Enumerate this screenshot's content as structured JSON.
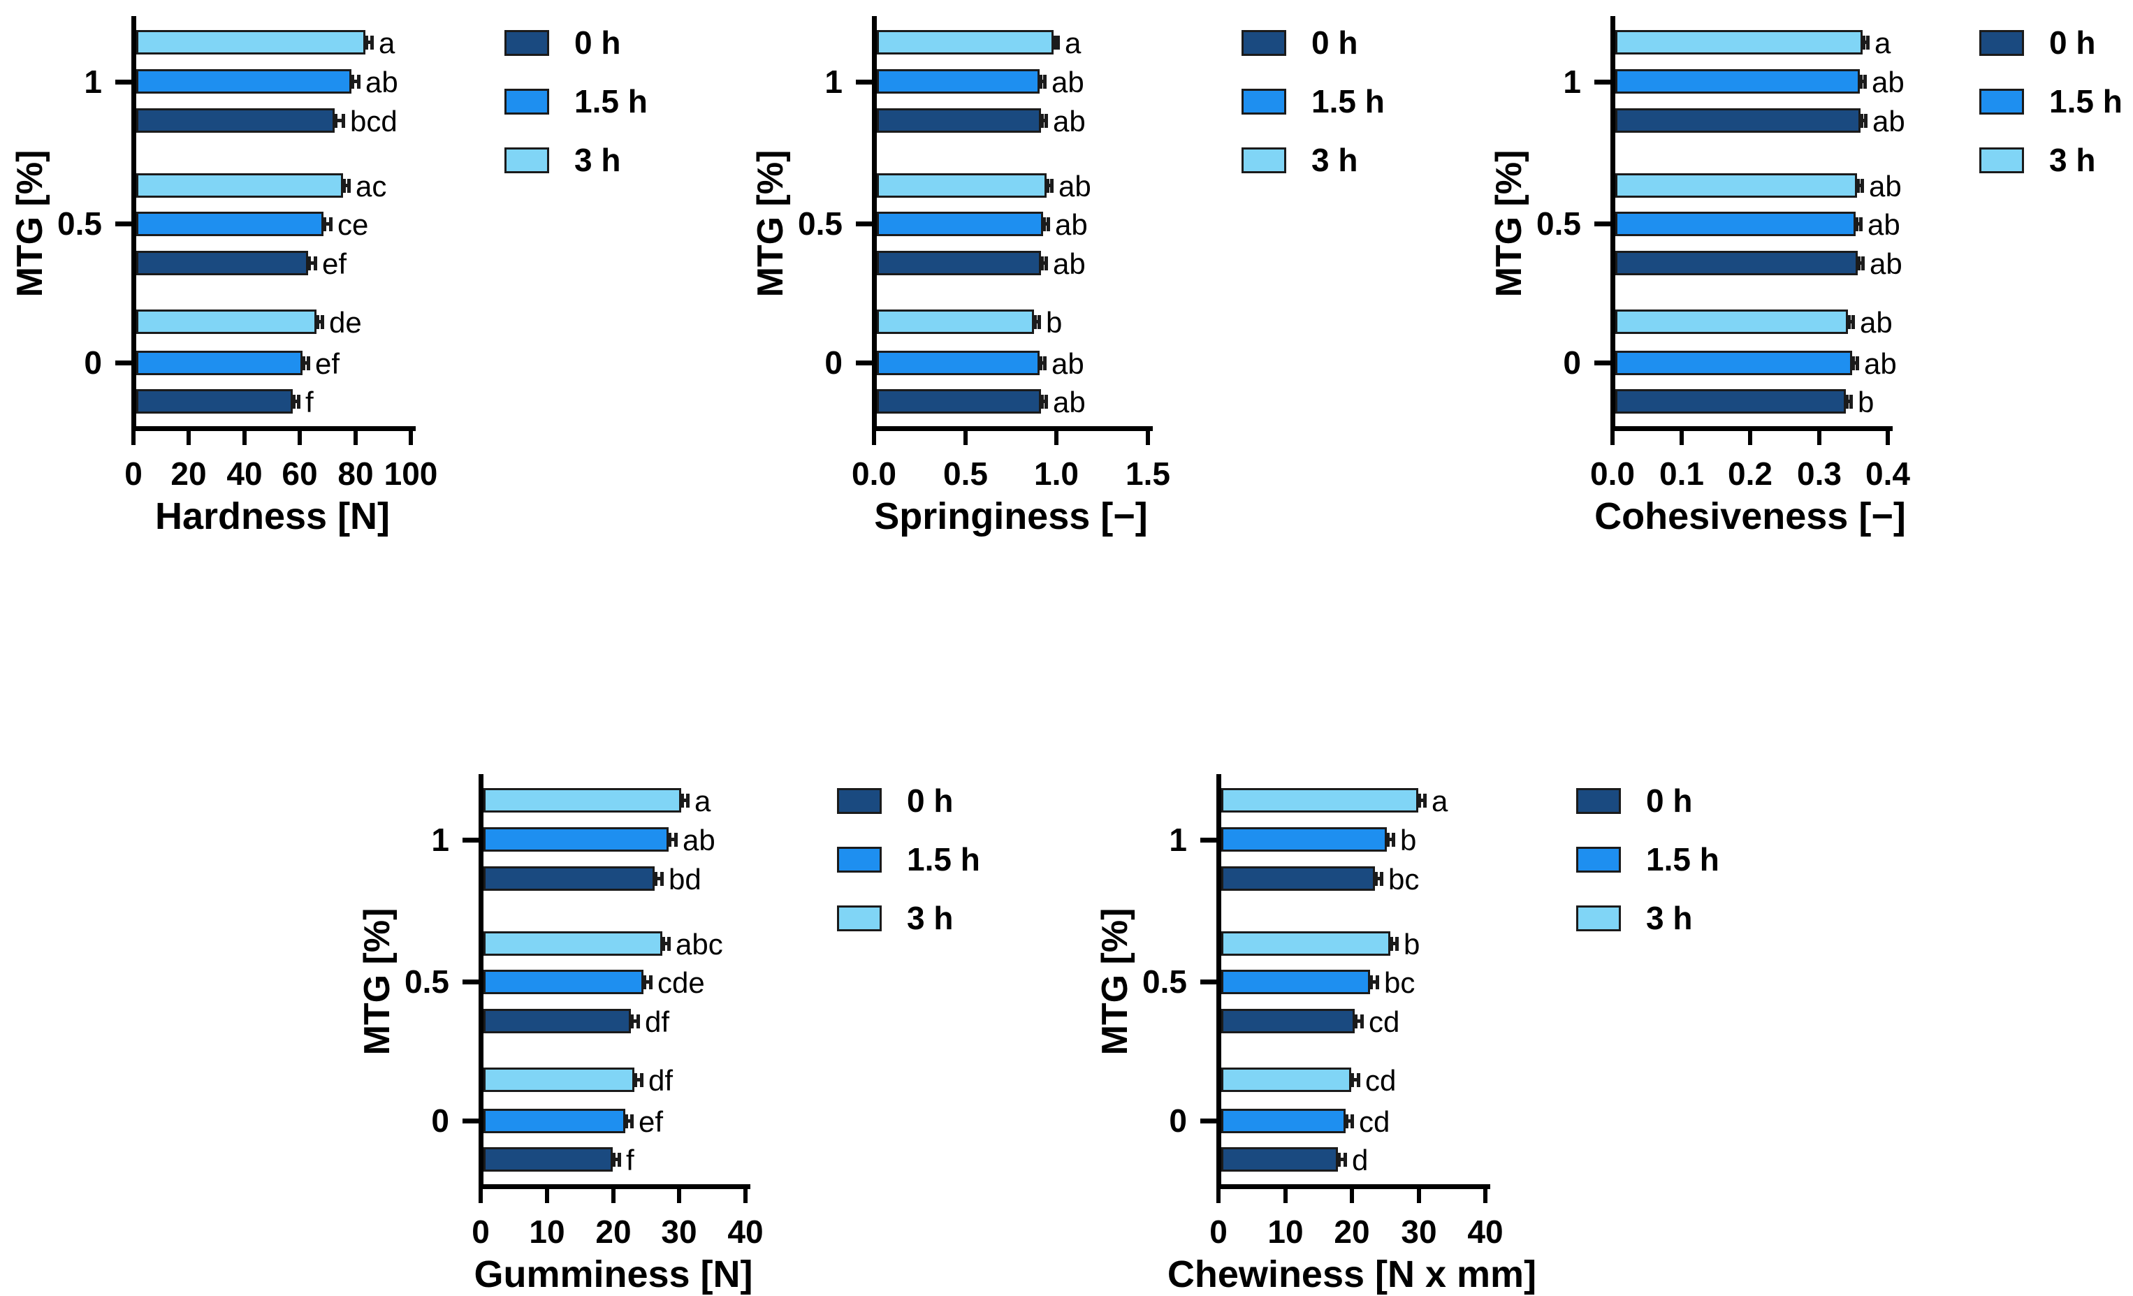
{
  "figure": {
    "background": "#FFFFFF",
    "y_axis_label": "MTG [%]",
    "y_categories": [
      "1",
      "0.5",
      "0"
    ],
    "legend_labels": [
      "0 h",
      "1.5 h",
      "3 h"
    ],
    "colors": {
      "series_0h": "#1A4A80",
      "series_1_5h": "#1E8FF0",
      "series_3h": "#80D5F6",
      "outline": "#1B1B1B",
      "axis": "#000000"
    }
  },
  "chart_data": [
    {
      "type": "bar",
      "orientation": "horizontal",
      "xlabel": "Hardness [N]",
      "ylabel": "MTG [%]",
      "xlim": [
        0,
        100
      ],
      "xtick_labels": [
        "0",
        "20",
        "40",
        "60",
        "80",
        "100"
      ],
      "categories": [
        "1",
        "0.5",
        "0"
      ],
      "legend_labels": [
        "0 h",
        "1.5 h",
        "3 h"
      ],
      "grid": false,
      "legend_position": "right",
      "series": [
        {
          "name": "0 h",
          "color": "#1A4A80",
          "values": [
            71.5,
            62.0,
            56.5
          ],
          "errors": [
            2.5,
            2.0,
            1.5
          ],
          "sig_letters": [
            "bcd",
            "ef",
            "f"
          ]
        },
        {
          "name": "1.5 h",
          "color": "#1E8FF0",
          "values": [
            77.5,
            67.5,
            60.0
          ],
          "errors": [
            2.0,
            2.0,
            1.5
          ],
          "sig_letters": [
            "ab",
            "ce",
            "ef"
          ]
        },
        {
          "name": "3 h",
          "color": "#80D5F6",
          "values": [
            82.5,
            74.5,
            65.0
          ],
          "errors": [
            2.0,
            1.5,
            1.5
          ],
          "sig_letters": [
            "a",
            "ac",
            "de"
          ]
        }
      ]
    },
    {
      "type": "bar",
      "orientation": "horizontal",
      "xlabel": "Springiness [−]",
      "ylabel": "MTG [%]",
      "xlim": [
        0,
        1.5
      ],
      "xtick_labels": [
        "0.0",
        "0.5",
        "1.0",
        "1.5"
      ],
      "categories": [
        "1",
        "0.5",
        "0"
      ],
      "legend_labels": [
        "0 h",
        "1.5 h",
        "3 h"
      ],
      "grid": false,
      "legend_position": "right",
      "series": [
        {
          "name": "0 h",
          "color": "#1A4A80",
          "values": [
            0.9,
            0.9,
            0.9
          ],
          "errors": [
            0.02,
            0.02,
            0.02
          ],
          "sig_letters": [
            "ab",
            "ab",
            "ab"
          ]
        },
        {
          "name": "1.5 h",
          "color": "#1E8FF0",
          "values": [
            0.89,
            0.91,
            0.89
          ],
          "errors": [
            0.02,
            0.02,
            0.02
          ],
          "sig_letters": [
            "ab",
            "ab",
            "ab"
          ]
        },
        {
          "name": "3 h",
          "color": "#80D5F6",
          "values": [
            0.97,
            0.93,
            0.86
          ],
          "errors": [
            0.015,
            0.02,
            0.02
          ],
          "sig_letters": [
            "a",
            "ab",
            "b"
          ]
        }
      ]
    },
    {
      "type": "bar",
      "orientation": "horizontal",
      "xlabel": "Cohesiveness [−]",
      "ylabel": "MTG [%]",
      "xlim": [
        0,
        0.4
      ],
      "xtick_labels": [
        "0.0",
        "0.1",
        "0.2",
        "0.3",
        "0.4"
      ],
      "categories": [
        "1",
        "0.5",
        "0"
      ],
      "legend_labels": [
        "0 h",
        "1.5 h",
        "3 h"
      ],
      "grid": false,
      "legend_position": "right",
      "series": [
        {
          "name": "0 h",
          "color": "#1A4A80",
          "values": [
            0.356,
            0.352,
            0.335
          ],
          "errors": [
            0.005,
            0.005,
            0.005
          ],
          "sig_letters": [
            "ab",
            "ab",
            "b"
          ]
        },
        {
          "name": "1.5 h",
          "color": "#1E8FF0",
          "values": [
            0.355,
            0.349,
            0.344
          ],
          "errors": [
            0.005,
            0.005,
            0.005
          ],
          "sig_letters": [
            "ab",
            "ab",
            "ab"
          ]
        },
        {
          "name": "3 h",
          "color": "#80D5F6",
          "values": [
            0.359,
            0.351,
            0.338
          ],
          "errors": [
            0.005,
            0.005,
            0.005
          ],
          "sig_letters": [
            "a",
            "ab",
            "ab"
          ]
        }
      ]
    },
    {
      "type": "bar",
      "orientation": "horizontal",
      "xlabel": "Gumminess [N]",
      "ylabel": "MTG [%]",
      "xlim": [
        0,
        40
      ],
      "xtick_labels": [
        "0",
        "10",
        "20",
        "30",
        "40"
      ],
      "categories": [
        "1",
        "0.5",
        "0"
      ],
      "legend_labels": [
        "0 h",
        "1.5 h",
        "3 h"
      ],
      "grid": false,
      "legend_position": "right",
      "series": [
        {
          "name": "0 h",
          "color": "#1A4A80",
          "values": [
            25.9,
            22.3,
            19.5
          ],
          "errors": [
            0.8,
            0.8,
            0.8
          ],
          "sig_letters": [
            "bd",
            "df",
            "f"
          ]
        },
        {
          "name": "1.5 h",
          "color": "#1E8FF0",
          "values": [
            28.0,
            24.2,
            21.4
          ],
          "errors": [
            0.8,
            0.8,
            0.8
          ],
          "sig_letters": [
            "ab",
            "cde",
            "ef"
          ]
        },
        {
          "name": "3 h",
          "color": "#80D5F6",
          "values": [
            29.9,
            27.0,
            22.8
          ],
          "errors": [
            0.7,
            0.8,
            0.8
          ],
          "sig_letters": [
            "a",
            "abc",
            "df"
          ]
        }
      ]
    },
    {
      "type": "bar",
      "orientation": "horizontal",
      "xlabel": "Chewiness [N x mm]",
      "ylabel": "MTG [%]",
      "xlim": [
        0,
        40
      ],
      "xtick_labels": [
        "0",
        "10",
        "20",
        "30",
        "40"
      ],
      "categories": [
        "1",
        "0.5",
        "0"
      ],
      "legend_labels": [
        "0 h",
        "1.5 h",
        "3 h"
      ],
      "grid": false,
      "legend_position": "right",
      "series": [
        {
          "name": "0 h",
          "color": "#1A4A80",
          "values": [
            23.0,
            20.0,
            17.5
          ],
          "errors": [
            0.8,
            0.8,
            0.8
          ],
          "sig_letters": [
            "bc",
            "cd",
            "d"
          ]
        },
        {
          "name": "1.5 h",
          "color": "#1E8FF0",
          "values": [
            24.8,
            22.3,
            18.6
          ],
          "errors": [
            0.8,
            0.8,
            0.8
          ],
          "sig_letters": [
            "b",
            "bc",
            "cd"
          ]
        },
        {
          "name": "3 h",
          "color": "#80D5F6",
          "values": [
            29.5,
            25.3,
            19.5
          ],
          "errors": [
            0.8,
            0.8,
            0.8
          ],
          "sig_letters": [
            "a",
            "b",
            "cd"
          ]
        }
      ]
    }
  ]
}
